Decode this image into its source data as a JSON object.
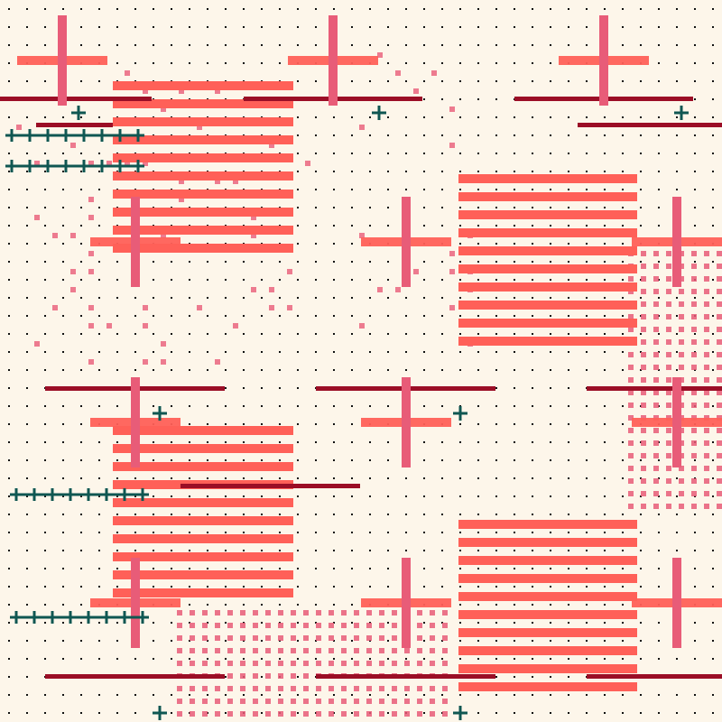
{
  "palette": {
    "background": "#fdf6ea",
    "dot": "#111111",
    "coral": "#ff6058",
    "pink": "#e85c78",
    "crimson": "#9b0e26",
    "teal": "#0f5752"
  },
  "pattern": {
    "motifs": [
      "dot-grid",
      "striped-block",
      "cross",
      "crimson-rule",
      "teal-plus-row",
      "pink-dot-field",
      "scattered-pink-squares"
    ],
    "striped_block_stripe_count": 10,
    "teal_plus_row_counts": [
      8,
      8,
      8,
      8
    ]
  }
}
